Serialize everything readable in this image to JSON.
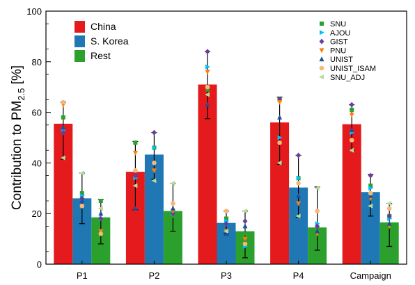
{
  "chart_data": {
    "type": "bar",
    "ylabel_main": "Contribution to PM",
    "ylabel_sub": "2.5",
    "ylabel_unit": " [%]",
    "ylim": [
      0,
      100
    ],
    "yticks": [
      0,
      20,
      40,
      60,
      80,
      100
    ],
    "categories": [
      "P1",
      "P2",
      "P3",
      "P4",
      "Campaign"
    ],
    "series": [
      {
        "name": "China",
        "color": "#e41a1c",
        "values": [
          55.5,
          36.5,
          71,
          56,
          55.3
        ],
        "range": [
          [
            41.5,
            64
          ],
          [
            21.5,
            48.5
          ],
          [
            57.5,
            84
          ],
          [
            39.5,
            66
          ],
          [
            45,
            63
          ]
        ]
      },
      {
        "name": "S. Korea",
        "color": "#1f78b4",
        "values": [
          26,
          43.3,
          16.3,
          30.3,
          28.5
        ],
        "range": [
          [
            16,
            36
          ],
          [
            33.5,
            52
          ],
          [
            12,
            21
          ],
          [
            18.5,
            43
          ],
          [
            19,
            35.5
          ]
        ]
      },
      {
        "name": "Rest",
        "color": "#2ca02c",
        "values": [
          18.5,
          21,
          13,
          14.5,
          16.5
        ],
        "range": [
          [
            8,
            25.5
          ],
          [
            13,
            32
          ],
          [
            2.5,
            21
          ],
          [
            5.5,
            30.5
          ],
          [
            7,
            24
          ]
        ]
      }
    ],
    "models": [
      {
        "name": "SNU",
        "marker": "square",
        "color": "#2ca02c",
        "values": [
          [
            58,
            28,
            25
          ],
          [
            48,
            46,
            19
          ],
          [
            69,
            18,
            12
          ],
          [
            65,
            34,
            14
          ],
          [
            61,
            31,
            19
          ]
        ]
      },
      {
        "name": "AJOU",
        "marker": "triangle-right",
        "color": "#00bfff",
        "values": [
          [
            53,
            27,
            18
          ],
          [
            34,
            46,
            20
          ],
          [
            78,
            17,
            7
          ],
          [
            50,
            34,
            16
          ],
          [
            52,
            30,
            18
          ]
        ]
      },
      {
        "name": "GIST",
        "marker": "diamond",
        "color": "#6a3d9a",
        "values": [
          [
            52,
            26,
            18
          ],
          [
            35,
            52,
            20
          ],
          [
            84,
            16,
            17
          ],
          [
            65,
            43,
            15
          ],
          [
            63,
            35,
            19
          ]
        ]
      },
      {
        "name": "PNU",
        "marker": "triangle-down",
        "color": "#ff7f0e",
        "values": [
          [
            63,
            23,
            13
          ],
          [
            44,
            37,
            21
          ],
          [
            76,
            13,
            10
          ],
          [
            64,
            24,
            12
          ],
          [
            59,
            26,
            15
          ]
        ]
      },
      {
        "name": "UNIST",
        "marker": "triangle-up",
        "color": "#1f4e9c",
        "values": [
          [
            54,
            25,
            20
          ],
          [
            22,
            40,
            22
          ],
          [
            63,
            12,
            15
          ],
          [
            58,
            27,
            13
          ],
          [
            53,
            27,
            16
          ]
        ]
      },
      {
        "name": "UNIST_ISAM",
        "marker": "circle",
        "color": "#f5b87a",
        "values": [
          [
            64,
            23,
            12
          ],
          [
            37,
            40,
            24
          ],
          [
            70,
            21,
            8
          ],
          [
            48,
            32,
            21
          ],
          [
            49,
            28,
            22
          ]
        ]
      },
      {
        "name": "SNU_ADJ",
        "marker": "triangle-left",
        "color": "#b8d99b",
        "values": [
          [
            42,
            36,
            22
          ],
          [
            31,
            33,
            32
          ],
          [
            67,
            13,
            21
          ],
          [
            40,
            19,
            30
          ],
          [
            45,
            23,
            24
          ]
        ]
      }
    ]
  }
}
